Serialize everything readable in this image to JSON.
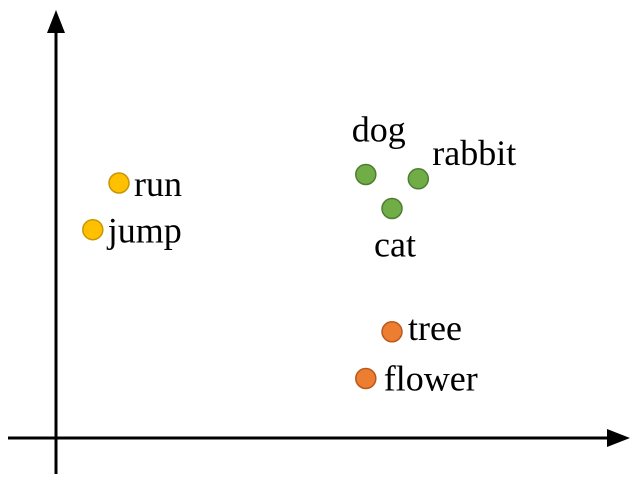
{
  "chart_data": {
    "type": "scatter",
    "title": "",
    "xlabel": "",
    "ylabel": "",
    "grid": false,
    "legend": "none",
    "groups": [
      {
        "color": "#ffc000",
        "stroke": "#c99500",
        "points": [
          {
            "label": "run",
            "x": 1.2,
            "y": 6.0
          },
          {
            "label": "jump",
            "x": 0.7,
            "y": 4.9
          }
        ]
      },
      {
        "color": "#70ad47",
        "stroke": "#4e7d31",
        "points": [
          {
            "label": "dog",
            "x": 5.9,
            "y": 6.2
          },
          {
            "label": "rabbit",
            "x": 6.9,
            "y": 6.1
          },
          {
            "label": "cat",
            "x": 6.4,
            "y": 5.4
          }
        ]
      },
      {
        "color": "#ed7d31",
        "stroke": "#b85a1d",
        "points": [
          {
            "label": "tree",
            "x": 6.4,
            "y": 2.5
          },
          {
            "label": "flower",
            "x": 5.9,
            "y": 1.4
          }
        ]
      }
    ]
  }
}
